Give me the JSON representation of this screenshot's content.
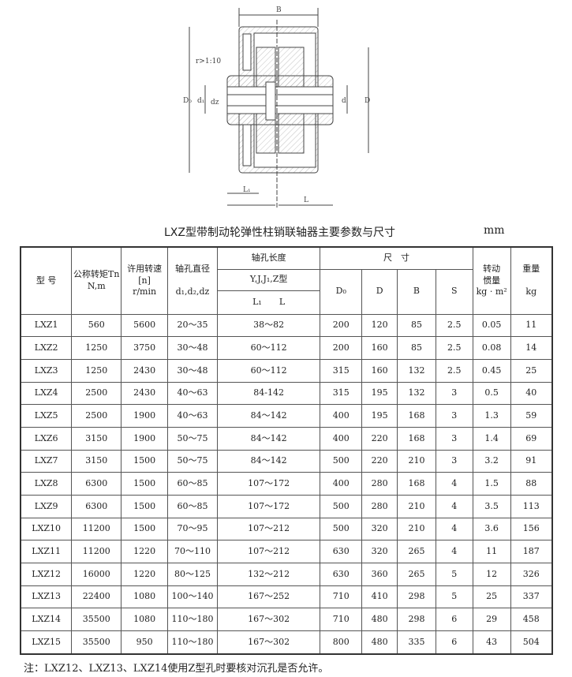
{
  "drawing": {
    "labels": {
      "B": "B",
      "taper": "r>1:10",
      "D0": "D₀",
      "d1": "d₁",
      "dz": "dz",
      "d": "d",
      "D": "D",
      "L1": "L₁",
      "L": "L"
    }
  },
  "title": "LXZ型带制动轮弹性柱销联轴器主要参数与尺寸",
  "unit": "mm",
  "header": {
    "model": "型 号",
    "torque": "公称转矩Tn N,m",
    "speed1": "许用转速",
    "speed2": "[n]",
    "speed3": "r/min",
    "bore1": "轴孔直径",
    "bore2": "d₁,d₂,dz",
    "length": "轴孔长度",
    "types": "Y,J,J₁,Z型",
    "L1": "L₁",
    "L": "L",
    "dims": "尺　寸",
    "D0": "D₀",
    "D": "D",
    "B": "B",
    "S": "S",
    "inertia1": "转动",
    "inertia2": "惯量",
    "inertia3": "kg · m²",
    "weight1": "重量",
    "weight2": "kg"
  },
  "rows": [
    [
      "LXZ1",
      "560",
      "5600",
      "20～35",
      "38～82",
      "200",
      "120",
      "85",
      "2.5",
      "0.05",
      "11"
    ],
    [
      "LXZ2",
      "1250",
      "3750",
      "30～48",
      "60～112",
      "200",
      "160",
      "85",
      "2.5",
      "0.08",
      "14"
    ],
    [
      "LXZ3",
      "1250",
      "2430",
      "30～48",
      "60～112",
      "315",
      "160",
      "132",
      "2.5",
      "0.45",
      "25"
    ],
    [
      "LXZ4",
      "2500",
      "2430",
      "40～63",
      "84-142",
      "315",
      "195",
      "132",
      "3",
      "0.5",
      "40"
    ],
    [
      "LXZ5",
      "2500",
      "1900",
      "40～63",
      "84～142",
      "400",
      "195",
      "168",
      "3",
      "1.3",
      "59"
    ],
    [
      "LXZ6",
      "3150",
      "1900",
      "50～75",
      "84～142",
      "400",
      "220",
      "168",
      "3",
      "1.4",
      "69"
    ],
    [
      "LXZ7",
      "3150",
      "1500",
      "50～75",
      "84～142",
      "500",
      "220",
      "210",
      "3",
      "3.2",
      "91"
    ],
    [
      "LXZ8",
      "6300",
      "1500",
      "60～85",
      "107～172",
      "400",
      "280",
      "168",
      "4",
      "1.5",
      "88"
    ],
    [
      "LXZ9",
      "6300",
      "1500",
      "60～85",
      "107～172",
      "500",
      "280",
      "210",
      "4",
      "3.5",
      "113"
    ],
    [
      "LXZ10",
      "11200",
      "1500",
      "70～95",
      "107～212",
      "500",
      "320",
      "210",
      "4",
      "3.6",
      "156"
    ],
    [
      "LXZ11",
      "11200",
      "1220",
      "70～110",
      "107～212",
      "630",
      "320",
      "265",
      "4",
      "11",
      "187"
    ],
    [
      "LXZ12",
      "16000",
      "1220",
      "80～125",
      "132～212",
      "630",
      "360",
      "265",
      "5",
      "12",
      "326"
    ],
    [
      "LXZ13",
      "22400",
      "1080",
      "100～140",
      "167～252",
      "710",
      "410",
      "298",
      "5",
      "25",
      "337"
    ],
    [
      "LXZ14",
      "35500",
      "1080",
      "110～180",
      "167～302",
      "710",
      "480",
      "298",
      "6",
      "29",
      "458"
    ],
    [
      "LXZ15",
      "35500",
      "950",
      "110～180",
      "167～302",
      "800",
      "480",
      "335",
      "6",
      "43",
      "504"
    ]
  ],
  "note": "注：LXZ12、LXZ13、LXZ14使用Z型孔时要核对沉孔是否允许。"
}
